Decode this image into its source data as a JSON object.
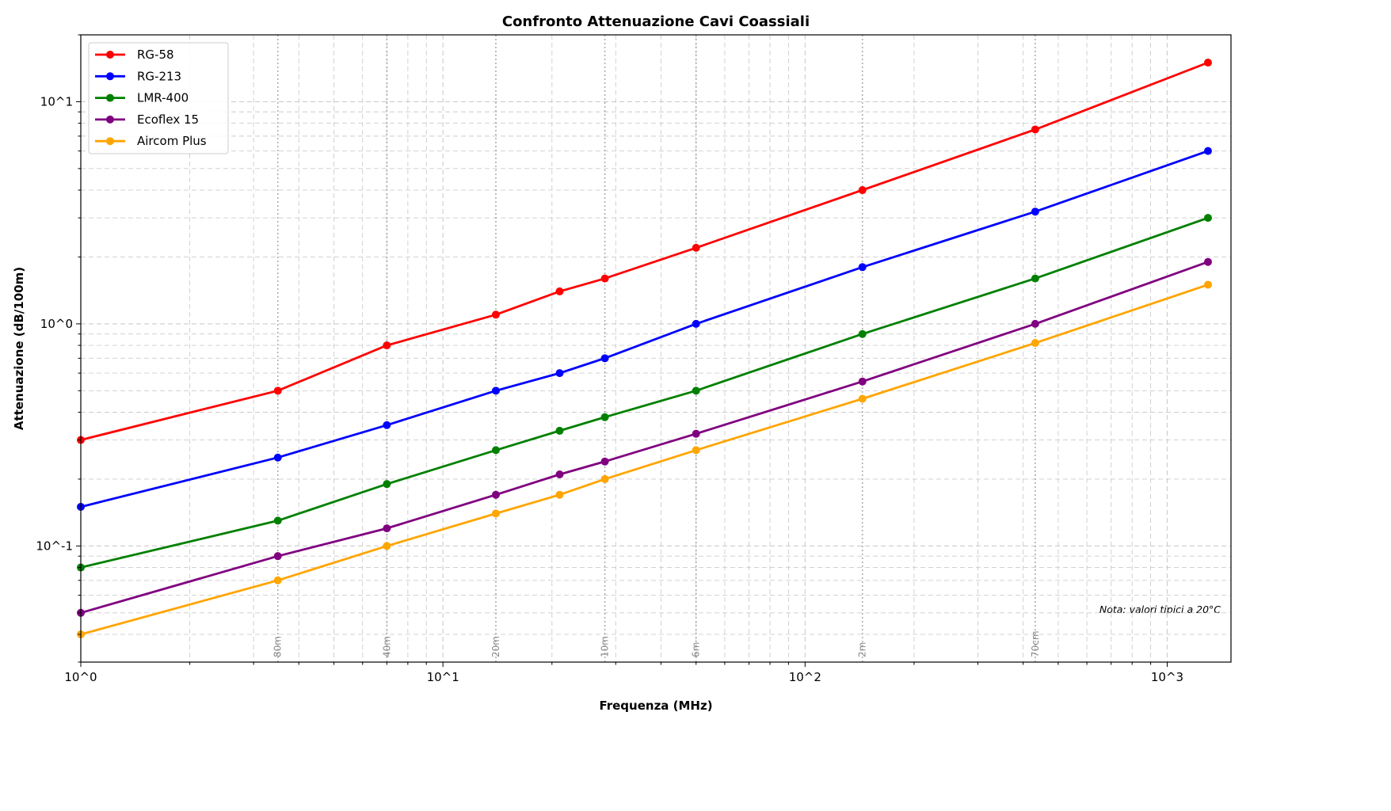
{
  "chart_data": {
    "type": "line",
    "title": "Confronto Attenuazione Cavi Coassiali",
    "xlabel": "Frequenza (MHz)",
    "ylabel": "Attenuazione (dB/100m)",
    "xscale": "log",
    "yscale": "log",
    "xlim": [
      1,
      1500
    ],
    "ylim": [
      0.03,
      20
    ],
    "grid": "both major and minor, dashed",
    "legend_position": "top-left",
    "x": [
      1,
      3.5,
      7,
      14,
      21,
      28,
      50,
      144,
      432,
      1296
    ],
    "x_tick_labels": [
      "10^0",
      "10^1",
      "10^2",
      "10^3"
    ],
    "y_tick_labels": [
      "10^-1",
      "10^0",
      "10^1"
    ],
    "series": [
      {
        "name": "RG-58",
        "color": "#ff0000",
        "values": [
          0.3,
          0.5,
          0.8,
          1.1,
          1.4,
          1.6,
          2.2,
          4.0,
          7.5,
          15
        ]
      },
      {
        "name": "RG-213",
        "color": "#0000ff",
        "values": [
          0.15,
          0.25,
          0.35,
          0.5,
          0.6,
          0.7,
          1.0,
          1.8,
          3.2,
          6.0
        ]
      },
      {
        "name": "LMR-400",
        "color": "#008000",
        "values": [
          0.08,
          0.13,
          0.19,
          0.27,
          0.33,
          0.38,
          0.5,
          0.9,
          1.6,
          3.0
        ]
      },
      {
        "name": "Ecoflex 15",
        "color": "#800080",
        "values": [
          0.05,
          0.09,
          0.12,
          0.17,
          0.21,
          0.24,
          0.32,
          0.55,
          1.0,
          1.9
        ]
      },
      {
        "name": "Aircom Plus",
        "color": "#ffa500",
        "values": [
          0.04,
          0.07,
          0.1,
          0.14,
          0.17,
          0.2,
          0.27,
          0.46,
          0.82,
          1.5
        ]
      }
    ],
    "bands": [
      {
        "label": "80m",
        "freq": 3.5
      },
      {
        "label": "40m",
        "freq": 7
      },
      {
        "label": "20m",
        "freq": 14
      },
      {
        "label": "10m",
        "freq": 28
      },
      {
        "label": "6m",
        "freq": 50
      },
      {
        "label": "2m",
        "freq": 144
      },
      {
        "label": "70cm",
        "freq": 432
      }
    ],
    "annotation": "Nota: valori tipici a 20°C"
  }
}
